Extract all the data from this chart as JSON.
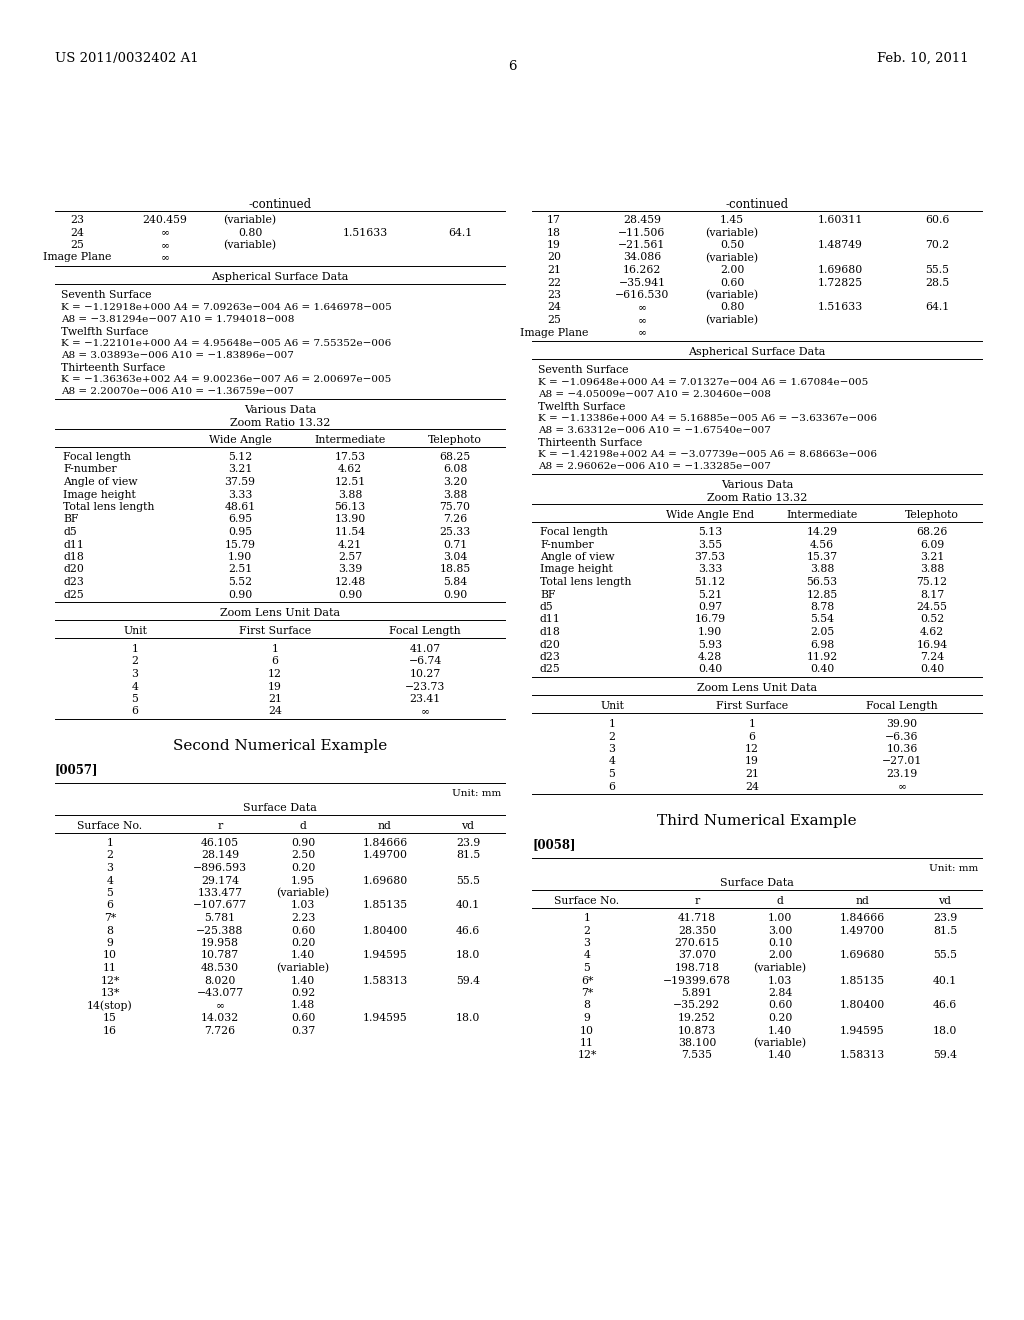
{
  "page_header_left": "US 2011/0032402 A1",
  "page_header_right": "Feb. 10, 2011",
  "page_number": "6",
  "bg_color": "#ffffff",
  "left_col": {
    "continued_title": "-continued",
    "surface_table_rows": [
      [
        "23",
        "240.459",
        "(variable)",
        "",
        ""
      ],
      [
        "24",
        "∞",
        "0.80",
        "1.51633",
        "64.1"
      ],
      [
        "25",
        "∞",
        "(variable)",
        "",
        ""
      ],
      [
        "Image Plane",
        "∞",
        "",
        "",
        ""
      ]
    ],
    "aspherical_title": "Aspherical Surface Data",
    "aspherical_sections": [
      {
        "title": "Seventh Surface",
        "lines": [
          "K = −1.12918e+000 A4 = 7.09263e−004 A6 = 1.646978−005",
          "A8 = −3.81294e−007 A10 = 1.794018−008"
        ]
      },
      {
        "title": "Twelfth Surface",
        "lines": [
          "K = −1.22101e+000 A4 = 4.95648e−005 A6 = 7.55352e−006",
          "A8 = 3.03893e−006 A10 = −1.83896e−007"
        ]
      },
      {
        "title": "Thirteenth Surface",
        "lines": [
          "K = −1.36363e+002 A4 = 9.00236e−007 A6 = 2.00697e−005",
          "A8 = 2.20070e−006 A10 = −1.36759e−007"
        ]
      }
    ],
    "various_title": "Various Data",
    "zoom_ratio": "Zoom Ratio 13.32",
    "various_headers": [
      "",
      "Wide Angle",
      "Intermediate",
      "Telephoto"
    ],
    "various_rows": [
      [
        "Focal length",
        "5.12",
        "17.53",
        "68.25"
      ],
      [
        "F-number",
        "3.21",
        "4.62",
        "6.08"
      ],
      [
        "Angle of view",
        "37.59",
        "12.51",
        "3.20"
      ],
      [
        "Image height",
        "3.33",
        "3.88",
        "3.88"
      ],
      [
        "Total lens length",
        "48.61",
        "56.13",
        "75.70"
      ],
      [
        "BF",
        "6.95",
        "13.90",
        "7.26"
      ],
      [
        "d5",
        "0.95",
        "11.54",
        "25.33"
      ],
      [
        "d11",
        "15.79",
        "4.21",
        "0.71"
      ],
      [
        "d18",
        "1.90",
        "2.57",
        "3.04"
      ],
      [
        "d20",
        "2.51",
        "3.39",
        "18.85"
      ],
      [
        "d23",
        "5.52",
        "12.48",
        "5.84"
      ],
      [
        "d25",
        "0.90",
        "0.90",
        "0.90"
      ]
    ],
    "zoom_unit_title": "Zoom Lens Unit Data",
    "zoom_unit_headers": [
      "Unit",
      "First Surface",
      "Focal Length"
    ],
    "zoom_unit_rows": [
      [
        "1",
        "1",
        "41.07"
      ],
      [
        "2",
        "6",
        "−6.74"
      ],
      [
        "3",
        "12",
        "10.27"
      ],
      [
        "4",
        "19",
        "−23.73"
      ],
      [
        "5",
        "21",
        "23.41"
      ],
      [
        "6",
        "24",
        "∞"
      ]
    ],
    "section2_title": "Second Numerical Example",
    "paragraph": "[0057]",
    "surface_data_title": "Surface Data",
    "unit_label": "Unit: mm",
    "surface_headers": [
      "Surface No.",
      "r",
      "d",
      "nd",
      "vd"
    ],
    "surface_rows2": [
      [
        "1",
        "46.105",
        "0.90",
        "1.84666",
        "23.9"
      ],
      [
        "2",
        "28.149",
        "2.50",
        "1.49700",
        "81.5"
      ],
      [
        "3",
        "−896.593",
        "0.20",
        "",
        ""
      ],
      [
        "4",
        "29.174",
        "1.95",
        "1.69680",
        "55.5"
      ],
      [
        "5",
        "133.477",
        "(variable)",
        "",
        ""
      ],
      [
        "6",
        "−107.677",
        "1.03",
        "1.85135",
        "40.1"
      ],
      [
        "7*",
        "5.781",
        "2.23",
        "",
        ""
      ],
      [
        "8",
        "−25.388",
        "0.60",
        "1.80400",
        "46.6"
      ],
      [
        "9",
        "19.958",
        "0.20",
        "",
        ""
      ],
      [
        "10",
        "10.787",
        "1.40",
        "1.94595",
        "18.0"
      ],
      [
        "11",
        "48.530",
        "(variable)",
        "",
        ""
      ],
      [
        "12*",
        "8.020",
        "1.40",
        "1.58313",
        "59.4"
      ],
      [
        "13*",
        "−43.077",
        "0.92",
        "",
        ""
      ],
      [
        "14(stop)",
        "∞",
        "1.48",
        "",
        ""
      ],
      [
        "15",
        "14.032",
        "0.60",
        "1.94595",
        "18.0"
      ],
      [
        "16",
        "7.726",
        "0.37",
        "",
        ""
      ]
    ]
  },
  "right_col": {
    "continued_title": "-continued",
    "surface_table_rows_right": [
      [
        "17",
        "28.459",
        "1.45",
        "1.60311",
        "60.6"
      ],
      [
        "18",
        "−11.506",
        "(variable)",
        "",
        ""
      ],
      [
        "19",
        "−21.561",
        "0.50",
        "1.48749",
        "70.2"
      ],
      [
        "20",
        "34.086",
        "(variable)",
        "",
        ""
      ],
      [
        "21",
        "16.262",
        "2.00",
        "1.69680",
        "55.5"
      ],
      [
        "22",
        "−35.941",
        "0.60",
        "1.72825",
        "28.5"
      ],
      [
        "23",
        "−616.530",
        "(variable)",
        "",
        ""
      ],
      [
        "24",
        "∞",
        "0.80",
        "1.51633",
        "64.1"
      ],
      [
        "25",
        "∞",
        "(variable)",
        "",
        ""
      ],
      [
        "Image Plane",
        "∞",
        "",
        "",
        ""
      ]
    ],
    "aspherical_title": "Aspherical Surface Data",
    "aspherical_sections_right": [
      {
        "title": "Seventh Surface",
        "lines": [
          "K = −1.09648e+000 A4 = 7.01327e−004 A6 = 1.67084e−005",
          "A8 = −4.05009e−007 A10 = 2.30460e−008"
        ]
      },
      {
        "title": "Twelfth Surface",
        "lines": [
          "K = −1.13386e+000 A4 = 5.16885e−005 A6 = −3.63367e−006",
          "A8 = 3.63312e−006 A10 = −1.67540e−007"
        ]
      },
      {
        "title": "Thirteenth Surface",
        "lines": [
          "K = −1.42198e+002 A4 = −3.07739e−005 A6 = 8.68663e−006",
          "A8 = 2.96062e−006 A10 = −1.33285e−007"
        ]
      }
    ],
    "various_title": "Various Data",
    "zoom_ratio": "Zoom Ratio 13.32",
    "various_headers_right": [
      "",
      "Wide Angle End",
      "Intermediate",
      "Telephoto"
    ],
    "various_rows_right": [
      [
        "Focal length",
        "5.13",
        "14.29",
        "68.26"
      ],
      [
        "F-number",
        "3.55",
        "4.56",
        "6.09"
      ],
      [
        "Angle of view",
        "37.53",
        "15.37",
        "3.21"
      ],
      [
        "Image height",
        "3.33",
        "3.88",
        "3.88"
      ],
      [
        "Total lens length",
        "51.12",
        "56.53",
        "75.12"
      ],
      [
        "BF",
        "5.21",
        "12.85",
        "8.17"
      ],
      [
        "d5",
        "0.97",
        "8.78",
        "24.55"
      ],
      [
        "d11",
        "16.79",
        "5.54",
        "0.52"
      ],
      [
        "d18",
        "1.90",
        "2.05",
        "4.62"
      ],
      [
        "d20",
        "5.93",
        "6.98",
        "16.94"
      ],
      [
        "d23",
        "4.28",
        "11.92",
        "7.24"
      ],
      [
        "d25",
        "0.40",
        "0.40",
        "0.40"
      ]
    ],
    "zoom_unit_title": "Zoom Lens Unit Data",
    "zoom_unit_headers_right": [
      "Unit",
      "First Surface",
      "Focal Length"
    ],
    "zoom_unit_rows_right": [
      [
        "1",
        "1",
        "39.90"
      ],
      [
        "2",
        "6",
        "−6.36"
      ],
      [
        "3",
        "12",
        "10.36"
      ],
      [
        "4",
        "19",
        "−27.01"
      ],
      [
        "5",
        "21",
        "23.19"
      ],
      [
        "6",
        "24",
        "∞"
      ]
    ],
    "section3_title": "Third Numerical Example",
    "paragraph3": "[0058]",
    "surface_data_title3": "Surface Data",
    "unit_label3": "Unit: mm",
    "surface_headers3": [
      "Surface No.",
      "r",
      "d",
      "nd",
      "vd"
    ],
    "surface_rows3": [
      [
        "1",
        "41.718",
        "1.00",
        "1.84666",
        "23.9"
      ],
      [
        "2",
        "28.350",
        "3.00",
        "1.49700",
        "81.5"
      ],
      [
        "3",
        "270.615",
        "0.10",
        "",
        ""
      ],
      [
        "4",
        "37.070",
        "2.00",
        "1.69680",
        "55.5"
      ],
      [
        "5",
        "198.718",
        "(variable)",
        "",
        ""
      ],
      [
        "6*",
        "−19399.678",
        "1.03",
        "1.85135",
        "40.1"
      ],
      [
        "7*",
        "5.891",
        "2.84",
        "",
        ""
      ],
      [
        "8",
        "−35.292",
        "0.60",
        "1.80400",
        "46.6"
      ],
      [
        "9",
        "19.252",
        "0.20",
        "",
        ""
      ],
      [
        "10",
        "10.873",
        "1.40",
        "1.94595",
        "18.0"
      ],
      [
        "11",
        "38.100",
        "(variable)",
        "",
        ""
      ],
      [
        "12*",
        "7.535",
        "1.40",
        "1.58313",
        "59.4"
      ]
    ]
  }
}
